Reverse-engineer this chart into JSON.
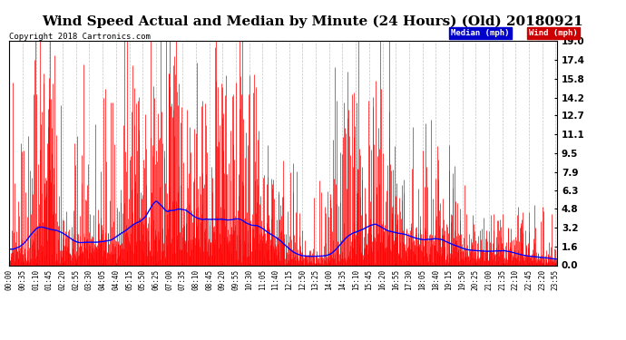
{
  "title": "Wind Speed Actual and Median by Minute (24 Hours) (Old) 20180921",
  "copyright": "Copyright 2018 Cartronics.com",
  "ylabel_right_ticks": [
    0.0,
    1.6,
    3.2,
    4.8,
    6.3,
    7.9,
    9.5,
    11.1,
    12.7,
    14.2,
    15.8,
    17.4,
    19.0
  ],
  "ymax": 19.0,
  "ymin": 0.0,
  "bar_color": "#ff0000",
  "median_line_color": "#0000ff",
  "background_color": "#ffffff",
  "grid_color": "#aaaaaa",
  "title_fontsize": 11,
  "copyright_fontsize": 6.5,
  "tick_fontsize": 5.5,
  "ytick_fontsize": 7.5,
  "legend_median_bg": "#0000cc",
  "legend_wind_bg": "#cc0000"
}
